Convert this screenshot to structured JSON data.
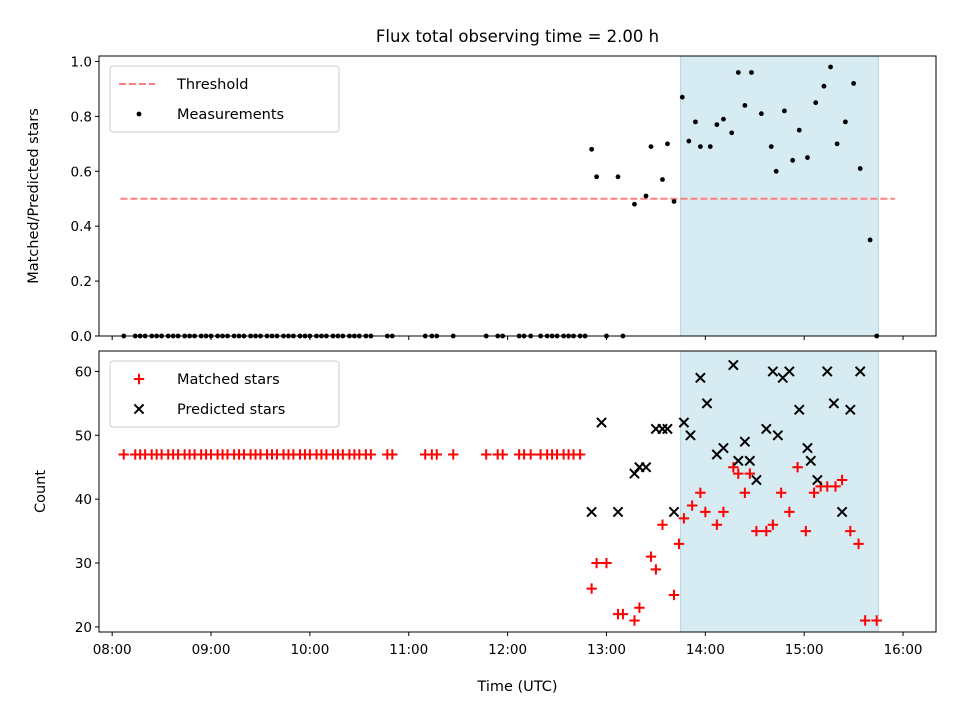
{
  "chart_data": [
    {
      "type": "scatter",
      "title": "Flux total observing time = 2.00 h",
      "xlabel": "",
      "ylabel": "Matched/Predicted stars",
      "xlim": [
        "07:52",
        "16:20"
      ],
      "ylim": [
        0.0,
        1.02
      ],
      "yticks": [
        "0.0",
        "0.2",
        "0.4",
        "0.6",
        "0.8",
        "1.0"
      ],
      "highlight_span": [
        "13:45",
        "15:45"
      ],
      "legend": {
        "placement": "upper left",
        "entries": [
          "Threshold",
          "Measurements"
        ]
      },
      "threshold": {
        "name": "Threshold",
        "value": 0.5,
        "x": [
          "08:05",
          "15:55"
        ],
        "color": "#ff7f7f",
        "style": "dashed"
      },
      "series": [
        {
          "name": "Measurements",
          "color": "#000000",
          "marker": "dot",
          "points": [
            [
              "08:07",
              0.0
            ],
            [
              "08:14",
              0.0
            ],
            [
              "08:17",
              0.0
            ],
            [
              "08:20",
              0.0
            ],
            [
              "08:24",
              0.0
            ],
            [
              "08:27",
              0.0
            ],
            [
              "08:30",
              0.0
            ],
            [
              "08:34",
              0.0
            ],
            [
              "08:37",
              0.0
            ],
            [
              "08:40",
              0.0
            ],
            [
              "08:44",
              0.0
            ],
            [
              "08:47",
              0.0
            ],
            [
              "08:50",
              0.0
            ],
            [
              "08:54",
              0.0
            ],
            [
              "08:57",
              0.0
            ],
            [
              "09:00",
              0.0
            ],
            [
              "09:04",
              0.0
            ],
            [
              "09:07",
              0.0
            ],
            [
              "09:10",
              0.0
            ],
            [
              "09:14",
              0.0
            ],
            [
              "09:17",
              0.0
            ],
            [
              "09:20",
              0.0
            ],
            [
              "09:24",
              0.0
            ],
            [
              "09:27",
              0.0
            ],
            [
              "09:30",
              0.0
            ],
            [
              "09:34",
              0.0
            ],
            [
              "09:37",
              0.0
            ],
            [
              "09:40",
              0.0
            ],
            [
              "09:44",
              0.0
            ],
            [
              "09:47",
              0.0
            ],
            [
              "09:50",
              0.0
            ],
            [
              "09:54",
              0.0
            ],
            [
              "09:57",
              0.0
            ],
            [
              "10:00",
              0.0
            ],
            [
              "10:04",
              0.0
            ],
            [
              "10:07",
              0.0
            ],
            [
              "10:10",
              0.0
            ],
            [
              "10:14",
              0.0
            ],
            [
              "10:17",
              0.0
            ],
            [
              "10:20",
              0.0
            ],
            [
              "10:24",
              0.0
            ],
            [
              "10:27",
              0.0
            ],
            [
              "10:30",
              0.0
            ],
            [
              "10:34",
              0.0
            ],
            [
              "10:37",
              0.0
            ],
            [
              "10:47",
              0.0
            ],
            [
              "10:50",
              0.0
            ],
            [
              "11:10",
              0.0
            ],
            [
              "11:14",
              0.0
            ],
            [
              "11:17",
              0.0
            ],
            [
              "11:27",
              0.0
            ],
            [
              "11:47",
              0.0
            ],
            [
              "11:54",
              0.0
            ],
            [
              "11:57",
              0.0
            ],
            [
              "12:07",
              0.0
            ],
            [
              "12:10",
              0.0
            ],
            [
              "12:14",
              0.0
            ],
            [
              "12:20",
              0.0
            ],
            [
              "12:24",
              0.0
            ],
            [
              "12:27",
              0.0
            ],
            [
              "12:30",
              0.0
            ],
            [
              "12:34",
              0.0
            ],
            [
              "12:37",
              0.0
            ],
            [
              "12:40",
              0.0
            ],
            [
              "12:44",
              0.0
            ],
            [
              "12:47",
              0.0
            ],
            [
              "13:00",
              0.0
            ],
            [
              "13:10",
              0.0
            ],
            [
              "12:51",
              0.68
            ],
            [
              "12:54",
              0.58
            ],
            [
              "13:07",
              0.58
            ],
            [
              "13:17",
              0.48
            ],
            [
              "13:24",
              0.51
            ],
            [
              "13:27",
              0.69
            ],
            [
              "13:34",
              0.57
            ],
            [
              "13:37",
              0.7
            ],
            [
              "13:41",
              0.49
            ],
            [
              "13:46",
              0.87
            ],
            [
              "13:50",
              0.71
            ],
            [
              "13:54",
              0.78
            ],
            [
              "13:57",
              0.69
            ],
            [
              "14:03",
              0.69
            ],
            [
              "14:07",
              0.77
            ],
            [
              "14:11",
              0.79
            ],
            [
              "14:16",
              0.74
            ],
            [
              "14:20",
              0.96
            ],
            [
              "14:24",
              0.84
            ],
            [
              "14:28",
              0.96
            ],
            [
              "14:34",
              0.81
            ],
            [
              "14:40",
              0.69
            ],
            [
              "14:43",
              0.6
            ],
            [
              "14:48",
              0.82
            ],
            [
              "14:53",
              0.64
            ],
            [
              "14:57",
              0.75
            ],
            [
              "15:02",
              0.65
            ],
            [
              "15:07",
              0.85
            ],
            [
              "15:12",
              0.91
            ],
            [
              "15:16",
              0.98
            ],
            [
              "15:20",
              0.7
            ],
            [
              "15:25",
              0.78
            ],
            [
              "15:30",
              0.92
            ],
            [
              "15:34",
              0.61
            ],
            [
              "15:40",
              0.35
            ],
            [
              "15:44",
              0.0
            ]
          ]
        }
      ]
    },
    {
      "type": "scatter",
      "title": "",
      "xlabel": "Time (UTC)",
      "ylabel": "Count",
      "xlim": [
        "07:52",
        "16:20"
      ],
      "ylim": [
        19.2,
        63.2
      ],
      "yticks": [
        "20",
        "30",
        "40",
        "50",
        "60"
      ],
      "xticks": [
        "08:00",
        "09:00",
        "10:00",
        "11:00",
        "12:00",
        "13:00",
        "14:00",
        "15:00",
        "16:00"
      ],
      "highlight_span": [
        "13:45",
        "15:45"
      ],
      "legend": {
        "placement": "upper left",
        "entries": [
          "Matched stars",
          "Predicted stars"
        ]
      },
      "series": [
        {
          "name": "Matched stars",
          "color": "#ff0000",
          "marker": "plus",
          "points": [
            [
              "08:07",
              47
            ],
            [
              "08:14",
              47
            ],
            [
              "08:17",
              47
            ],
            [
              "08:20",
              47
            ],
            [
              "08:24",
              47
            ],
            [
              "08:27",
              47
            ],
            [
              "08:30",
              47
            ],
            [
              "08:34",
              47
            ],
            [
              "08:37",
              47
            ],
            [
              "08:40",
              47
            ],
            [
              "08:44",
              47
            ],
            [
              "08:47",
              47
            ],
            [
              "08:50",
              47
            ],
            [
              "08:54",
              47
            ],
            [
              "08:57",
              47
            ],
            [
              "09:00",
              47
            ],
            [
              "09:04",
              47
            ],
            [
              "09:07",
              47
            ],
            [
              "09:10",
              47
            ],
            [
              "09:14",
              47
            ],
            [
              "09:17",
              47
            ],
            [
              "09:20",
              47
            ],
            [
              "09:24",
              47
            ],
            [
              "09:27",
              47
            ],
            [
              "09:30",
              47
            ],
            [
              "09:34",
              47
            ],
            [
              "09:37",
              47
            ],
            [
              "09:40",
              47
            ],
            [
              "09:44",
              47
            ],
            [
              "09:47",
              47
            ],
            [
              "09:50",
              47
            ],
            [
              "09:54",
              47
            ],
            [
              "09:57",
              47
            ],
            [
              "10:00",
              47
            ],
            [
              "10:04",
              47
            ],
            [
              "10:07",
              47
            ],
            [
              "10:10",
              47
            ],
            [
              "10:14",
              47
            ],
            [
              "10:17",
              47
            ],
            [
              "10:20",
              47
            ],
            [
              "10:24",
              47
            ],
            [
              "10:27",
              47
            ],
            [
              "10:30",
              47
            ],
            [
              "10:34",
              47
            ],
            [
              "10:37",
              47
            ],
            [
              "10:47",
              47
            ],
            [
              "10:50",
              47
            ],
            [
              "11:10",
              47
            ],
            [
              "11:14",
              47
            ],
            [
              "11:17",
              47
            ],
            [
              "11:27",
              47
            ],
            [
              "11:47",
              47
            ],
            [
              "11:54",
              47
            ],
            [
              "11:57",
              47
            ],
            [
              "12:07",
              47
            ],
            [
              "12:10",
              47
            ],
            [
              "12:14",
              47
            ],
            [
              "12:20",
              47
            ],
            [
              "12:24",
              47
            ],
            [
              "12:27",
              47
            ],
            [
              "12:30",
              47
            ],
            [
              "12:34",
              47
            ],
            [
              "12:37",
              47
            ],
            [
              "12:40",
              47
            ],
            [
              "12:44",
              47
            ],
            [
              "12:51",
              26
            ],
            [
              "12:54",
              30
            ],
            [
              "13:00",
              30
            ],
            [
              "13:07",
              22
            ],
            [
              "13:10",
              22
            ],
            [
              "13:17",
              21
            ],
            [
              "13:20",
              23
            ],
            [
              "13:27",
              31
            ],
            [
              "13:30",
              29
            ],
            [
              "13:34",
              36
            ],
            [
              "13:41",
              25
            ],
            [
              "13:44",
              33
            ],
            [
              "13:47",
              37
            ],
            [
              "13:52",
              39
            ],
            [
              "13:57",
              41
            ],
            [
              "14:00",
              38
            ],
            [
              "14:07",
              36
            ],
            [
              "14:11",
              38
            ],
            [
              "14:17",
              45
            ],
            [
              "14:20",
              44
            ],
            [
              "14:24",
              41
            ],
            [
              "14:27",
              44
            ],
            [
              "14:31",
              35
            ],
            [
              "14:37",
              35
            ],
            [
              "14:41",
              36
            ],
            [
              "14:46",
              41
            ],
            [
              "14:51",
              38
            ],
            [
              "14:56",
              45
            ],
            [
              "15:01",
              35
            ],
            [
              "15:06",
              41
            ],
            [
              "15:10",
              42
            ],
            [
              "15:14",
              42
            ],
            [
              "15:19",
              42
            ],
            [
              "15:23",
              43
            ],
            [
              "15:28",
              35
            ],
            [
              "15:33",
              33
            ],
            [
              "15:37",
              21
            ],
            [
              "15:44",
              21
            ]
          ]
        },
        {
          "name": "Predicted stars",
          "color": "#000000",
          "marker": "x",
          "points": [
            [
              "12:51",
              38
            ],
            [
              "12:57",
              52
            ],
            [
              "13:07",
              38
            ],
            [
              "13:17",
              44
            ],
            [
              "13:20",
              45
            ],
            [
              "13:24",
              45
            ],
            [
              "13:30",
              51
            ],
            [
              "13:34",
              51
            ],
            [
              "13:37",
              51
            ],
            [
              "13:41",
              38
            ],
            [
              "13:47",
              52
            ],
            [
              "13:51",
              50
            ],
            [
              "13:57",
              59
            ],
            [
              "14:01",
              55
            ],
            [
              "14:07",
              47
            ],
            [
              "14:11",
              48
            ],
            [
              "14:17",
              61
            ],
            [
              "14:20",
              46
            ],
            [
              "14:24",
              49
            ],
            [
              "14:27",
              46
            ],
            [
              "14:31",
              43
            ],
            [
              "14:37",
              51
            ],
            [
              "14:41",
              60
            ],
            [
              "14:44",
              50
            ],
            [
              "14:47",
              59
            ],
            [
              "14:51",
              60
            ],
            [
              "14:57",
              54
            ],
            [
              "15:02",
              48
            ],
            [
              "15:04",
              46
            ],
            [
              "15:08",
              43
            ],
            [
              "15:14",
              60
            ],
            [
              "15:18",
              55
            ],
            [
              "15:23",
              38
            ],
            [
              "15:28",
              54
            ],
            [
              "15:34",
              60
            ]
          ]
        }
      ]
    }
  ]
}
